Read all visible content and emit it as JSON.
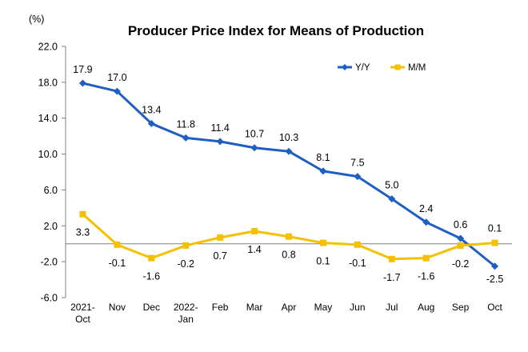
{
  "chart_data": {
    "type": "line",
    "title": "Producer Price Index for Means of Production",
    "ylabel": "(%)",
    "xlabel": "",
    "ylim": [
      -6.0,
      22.0
    ],
    "yticks": [
      "22.0",
      "18.0",
      "14.0",
      "10.0",
      "6.0",
      "2.0",
      "-2.0",
      "-6.0"
    ],
    "categories": [
      [
        "2021-",
        "Oct"
      ],
      [
        "Nov"
      ],
      [
        "Dec"
      ],
      [
        "2022-",
        "Jan"
      ],
      [
        "Feb"
      ],
      [
        "Mar"
      ],
      [
        "Apr"
      ],
      [
        "May"
      ],
      [
        "Jun"
      ],
      [
        "Jul"
      ],
      [
        "Aug"
      ],
      [
        "Sep"
      ],
      [
        "Oct"
      ]
    ],
    "series": [
      {
        "name": "Y/Y",
        "color": "#1F5FC4",
        "marker": "diamond",
        "values": [
          17.9,
          17.0,
          13.4,
          11.8,
          11.4,
          10.7,
          10.3,
          8.1,
          7.5,
          5.0,
          2.4,
          0.6,
          -2.5
        ],
        "labels": [
          "17.9",
          "17.0",
          "13.4",
          "11.8",
          "11.4",
          "10.7",
          "10.3",
          "8.1",
          "7.5",
          "5.0",
          "2.4",
          "0.6",
          "-2.5"
        ]
      },
      {
        "name": "M/M",
        "color": "#F5C000",
        "marker": "square",
        "values": [
          3.3,
          -0.1,
          -1.6,
          -0.2,
          0.7,
          1.4,
          0.8,
          0.1,
          -0.1,
          -1.7,
          -1.6,
          -0.2,
          0.1
        ],
        "labels": [
          "3.3",
          "-0.1",
          "-1.6",
          "-0.2",
          "0.7",
          "1.4",
          "0.8",
          "0.1",
          "-0.1",
          "-1.7",
          "-1.6",
          "-0.2",
          "0.1"
        ]
      }
    ],
    "legend": "top-right",
    "grid": false
  }
}
